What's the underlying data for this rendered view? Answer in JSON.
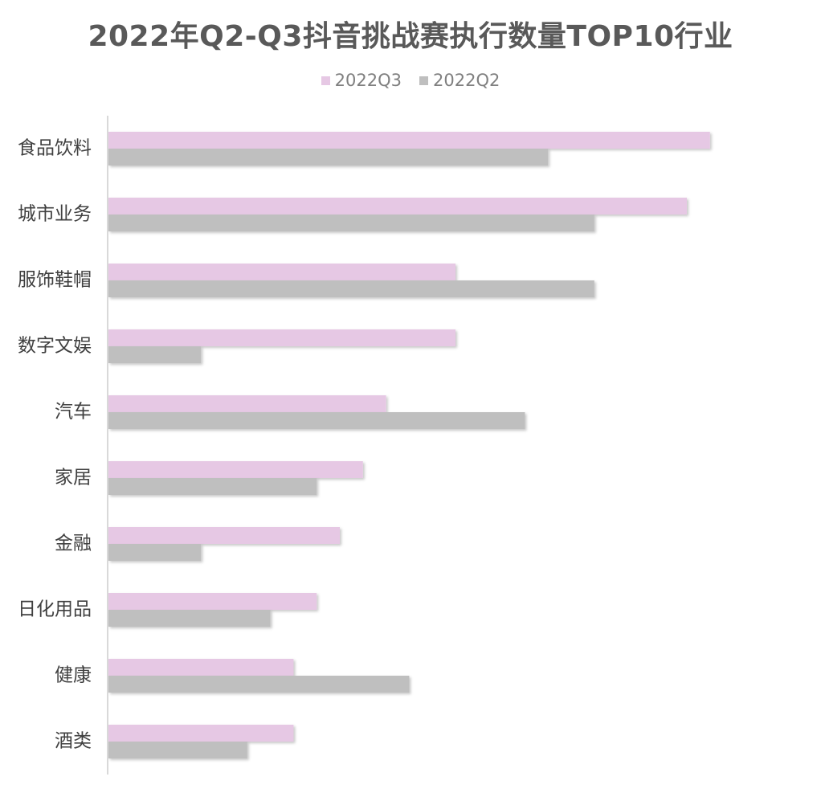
{
  "chart_data": {
    "type": "bar",
    "orientation": "horizontal",
    "title": "2022年Q2-Q3抖音挑战赛执行数量TOP10行业",
    "categories": [
      "食品饮料",
      "城市业务",
      "服饰鞋帽",
      "数字文娱",
      "汽车",
      "家居",
      "金融",
      "日化用品",
      "健康",
      "酒类"
    ],
    "series": [
      {
        "name": "2022Q3",
        "color": "#e6c8e4",
        "values": [
          26,
          25,
          15,
          15,
          12,
          11,
          10,
          9,
          8,
          8
        ]
      },
      {
        "name": "2022Q2",
        "color": "#bfbfbf",
        "values": [
          19,
          21,
          21,
          4,
          18,
          9,
          4,
          7,
          13,
          6
        ]
      }
    ],
    "xlim": [
      0,
      30
    ],
    "legend": "top-center",
    "grid": false,
    "axis_color": "#d9d9d9"
  }
}
